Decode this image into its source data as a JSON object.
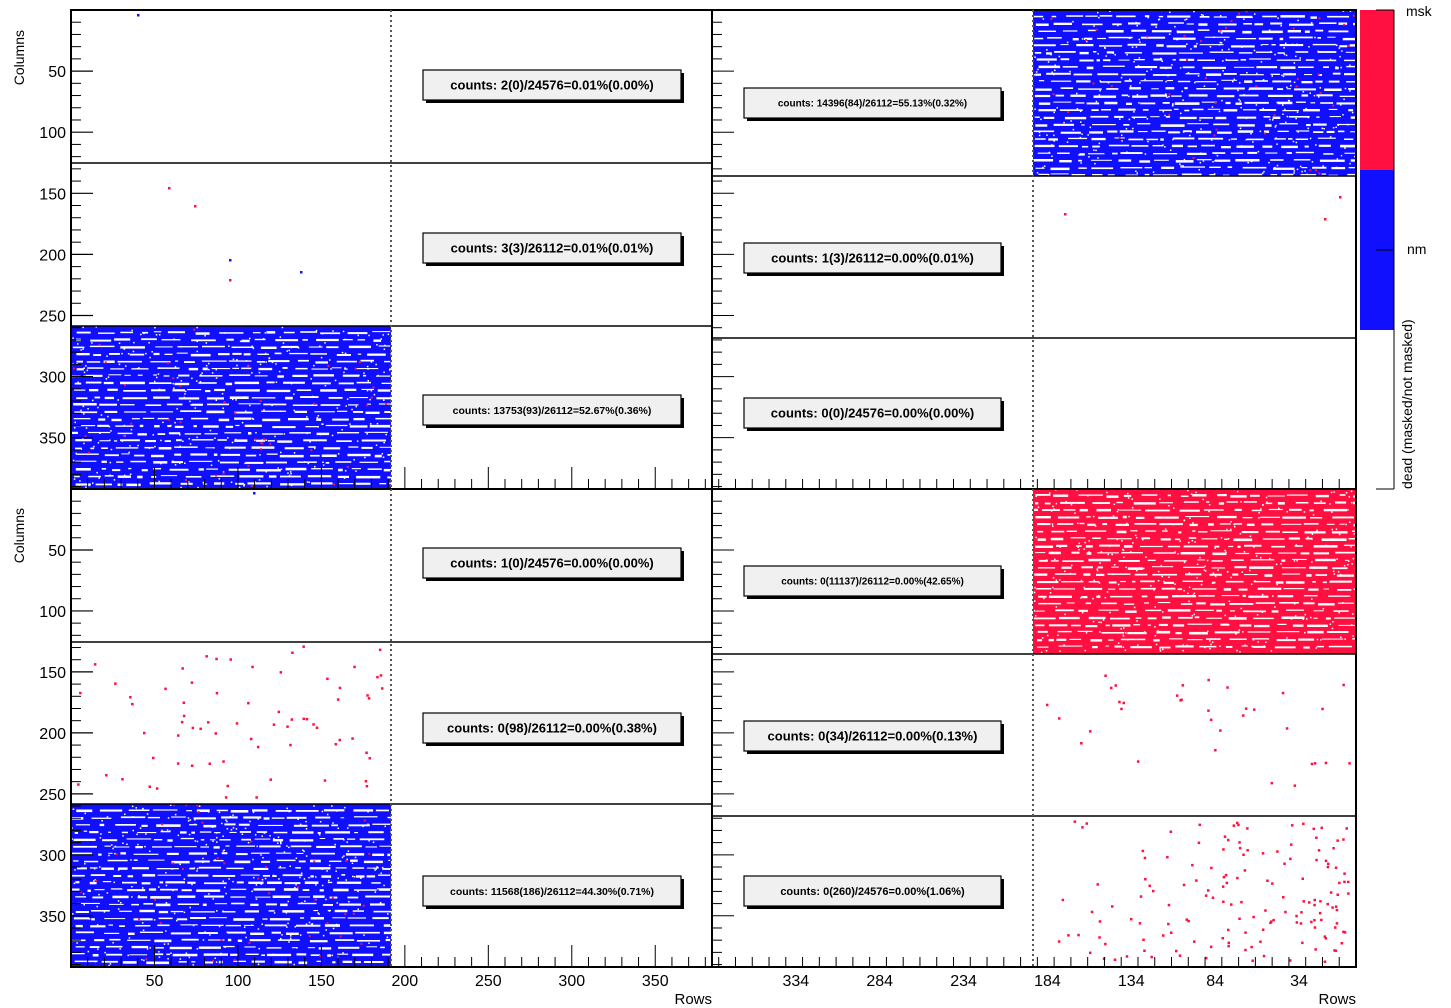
{
  "colors": {
    "dead_not_masked": "#1010ff",
    "dead_masked": "#ff1040",
    "frame": "#000000",
    "label_box_fill": "#f0f0f0"
  },
  "chart_data": [
    {
      "type": "heatmap",
      "ylabel": "Columns",
      "xlabel": "",
      "xlim": [
        0,
        384
      ],
      "ylim": [
        0,
        392
      ],
      "x_ticks": [],
      "y_ticks": [
        "50",
        "100",
        "150",
        "200",
        "250",
        "300",
        "350"
      ],
      "regions": [
        {
          "label": "counts: 2(0)/24576=0.01%(0.00%)",
          "fill": "sparse",
          "color": "blue",
          "n": 1
        },
        {
          "label": "counts: 3(3)/26112=0.01%(0.01%)",
          "fill": "sparse",
          "color": "mixed",
          "n": 5
        },
        {
          "label": "counts: 13753(93)/26112=52.67%(0.36%)",
          "fill": "dense",
          "color": "blue"
        }
      ]
    },
    {
      "type": "heatmap",
      "xlabel": "",
      "xlim": [
        384,
        0
      ],
      "x_ticks": [],
      "regions": [
        {
          "label": "counts: 14396(84)/26112=55.13%(0.32%)",
          "fill": "dense",
          "color": "blue"
        },
        {
          "label": "counts: 1(3)/26112=0.00%(0.01%)",
          "fill": "sparse",
          "color": "red",
          "n": 3
        },
        {
          "label": "counts: 0(0)/24576=0.00%(0.00%)",
          "fill": "none",
          "color": "blue"
        }
      ]
    },
    {
      "type": "heatmap",
      "ylabel": "Columns",
      "xlabel": "Rows",
      "xlim": [
        0,
        384
      ],
      "ylim": [
        0,
        392
      ],
      "x_ticks": [
        "50",
        "100",
        "150",
        "200",
        "250",
        "300",
        "350"
      ],
      "y_ticks": [
        "50",
        "100",
        "150",
        "200",
        "250",
        "300",
        "350"
      ],
      "regions": [
        {
          "label": "counts: 1(0)/24576=0.00%(0.00%)",
          "fill": "sparse",
          "color": "blue",
          "n": 1
        },
        {
          "label": "counts: 0(98)/26112=0.00%(0.38%)",
          "fill": "sparse",
          "color": "red",
          "n": 98
        },
        {
          "label": "counts: 11568(186)/26112=44.30%(0.71%)",
          "fill": "dense",
          "color": "blue"
        }
      ]
    },
    {
      "type": "heatmap",
      "xlabel": "Rows",
      "xlim": [
        384,
        0
      ],
      "x_ticks": [
        "334",
        "284",
        "234",
        "184",
        "134",
        "84",
        "34"
      ],
      "regions": [
        {
          "label": "counts: 0(11137)/26112=0.00%(42.65%)",
          "fill": "dense",
          "color": "red"
        },
        {
          "label": "counts: 0(34)/26112=0.00%(0.13%)",
          "fill": "sparse",
          "color": "red",
          "n": 34
        },
        {
          "label": "counts: 0(260)/24576=0.00%(1.06%)",
          "fill": "sparse",
          "color": "red",
          "n": 260
        }
      ]
    }
  ],
  "colorbar": {
    "title": "dead (masked/not masked)",
    "labels": [
      "msk",
      "nm"
    ]
  }
}
